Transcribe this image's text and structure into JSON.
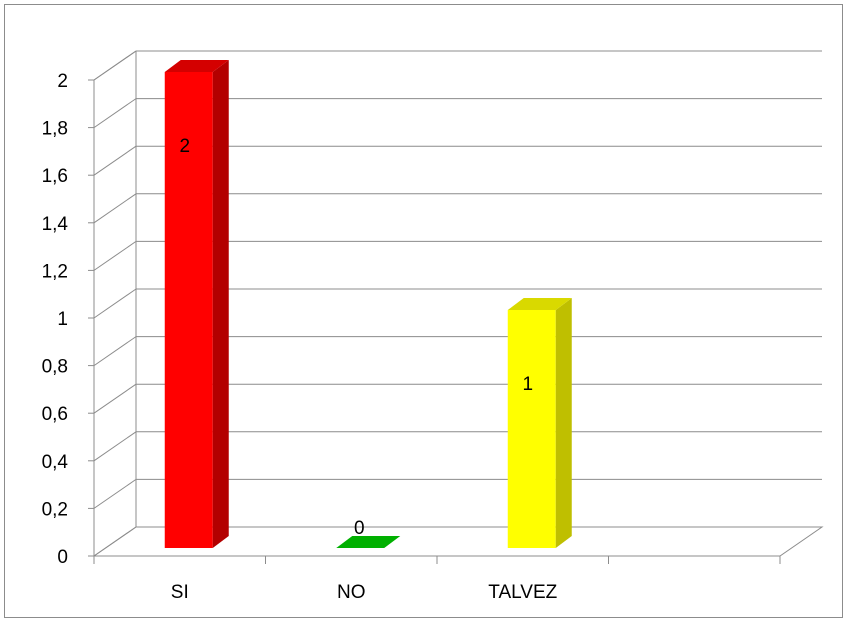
{
  "chart_data": {
    "type": "bar",
    "style": "3d-column",
    "categories": [
      "SI",
      "NO",
      "TALVEZ"
    ],
    "values": [
      2,
      0,
      1
    ],
    "data_labels": [
      "2",
      "0",
      "1"
    ],
    "colors": [
      "#ff0000",
      "#00b000",
      "#ffff00"
    ],
    "side_colors": [
      "#b30000",
      "#008a00",
      "#bfbf00"
    ],
    "top_colors": [
      "#d40000",
      "#22cc22",
      "#d9d900"
    ],
    "ylim": [
      0,
      2
    ],
    "yticks": [
      "0",
      "0,2",
      "0,4",
      "0,6",
      "0,8",
      "1",
      "1,2",
      "1,4",
      "1,6",
      "1,8",
      "2"
    ],
    "grid": true,
    "legend": "none",
    "title": "",
    "xlabel": "",
    "ylabel": ""
  }
}
